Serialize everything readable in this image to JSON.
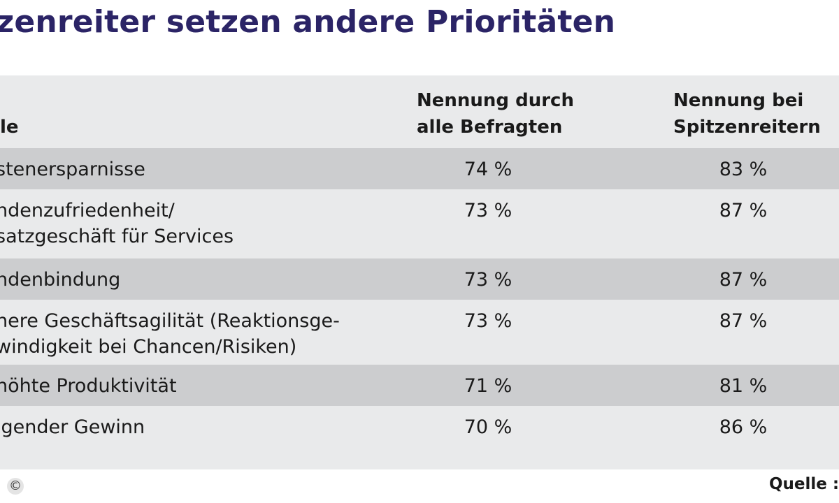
{
  "chart_data": {
    "type": "table",
    "title": "itzenreiter setzen andere Prioritäten",
    "columns": [
      "le",
      "Nennung durch alle Befragten",
      "Nennung bei Spitzenreitern"
    ],
    "header": {
      "first": "le",
      "col1_line1": "Nennung durch",
      "col1_line2": "alle Befragten",
      "col2_line1": "Nennung bei",
      "col2_line2": "Spitzenreitern"
    },
    "rows": [
      {
        "label_lines": [
          "stenersparnisse"
        ],
        "all": "74 %",
        "leaders": "83 %",
        "all_value": 74,
        "leaders_value": 83
      },
      {
        "label_lines": [
          "ndenzufriedenheit/",
          "satzgeschäft für Services"
        ],
        "all": "73 %",
        "leaders": "87 %",
        "all_value": 73,
        "leaders_value": 87
      },
      {
        "label_lines": [
          "ndenbindung"
        ],
        "all": "73 %",
        "leaders": "87 %",
        "all_value": 73,
        "leaders_value": 87
      },
      {
        "label_lines": [
          "here Geschäftsagilität (Reaktionsge-",
          "windigkeit bei Chancen/Risiken)"
        ],
        "all": "73 %",
        "leaders": "87 %",
        "all_value": 73,
        "leaders_value": 87
      },
      {
        "label_lines": [
          "höhte Produktivität"
        ],
        "all": "71 %",
        "leaders": "81 %",
        "all_value": 71,
        "leaders_value": 81
      },
      {
        "label_lines": [
          "igender Gewinn"
        ],
        "all": "70 %",
        "leaders": "86 %",
        "all_value": 70,
        "leaders_value": 86
      }
    ]
  },
  "footer": {
    "copyright": "©",
    "source": "Quelle : I"
  },
  "colors": {
    "title": "#2b2466",
    "panel": "#e9eaeb",
    "shaded_row": "#cccdcf"
  }
}
